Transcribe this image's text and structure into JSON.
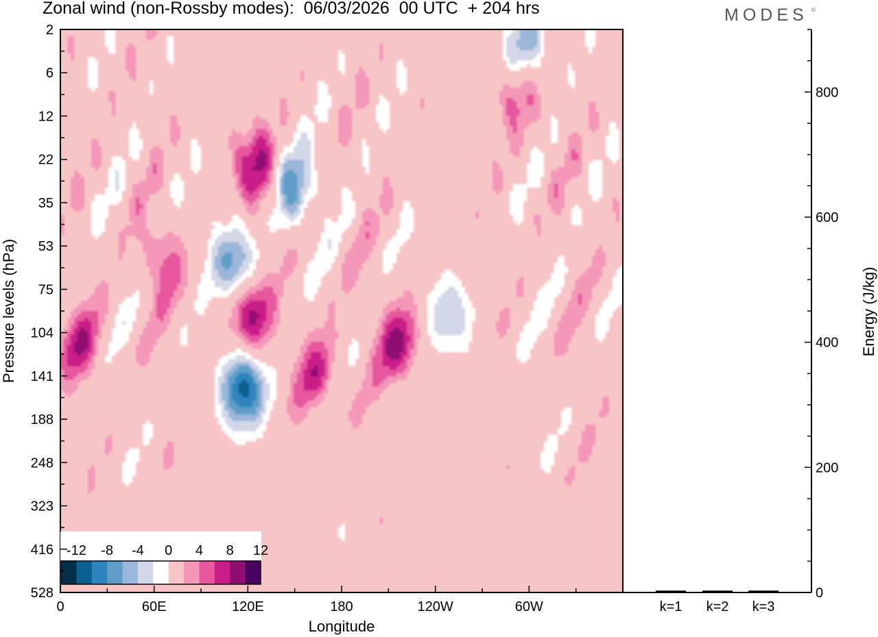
{
  "chart_data": [
    {
      "type": "heatmap",
      "title": "Zonal wind (non-Rossby modes):  06/03/2026  00 UTC  + 204 hrs",
      "xlabel": "Longitude",
      "ylabel": "Pressure levels (hPa)",
      "x_ticks": [
        "0",
        "60E",
        "120E",
        "180",
        "120W",
        "60W"
      ],
      "x_tick_values": [
        0,
        60,
        120,
        180,
        240,
        300
      ],
      "xlim": [
        0,
        360
      ],
      "y_ticks": [
        "2",
        "6",
        "12",
        "22",
        "35",
        "53",
        "75",
        "104",
        "141",
        "188",
        "248",
        "323",
        "416",
        "528"
      ],
      "colorbar_labels": [
        "-12",
        "-8",
        "-4",
        "0",
        "4",
        "8",
        "12"
      ],
      "colorbar_levels": [
        -14,
        -12,
        -10,
        -8,
        -6,
        -4,
        -2,
        2,
        4,
        6,
        8,
        10,
        12,
        14
      ],
      "colorbar_colors": [
        "#06304a",
        "#0a5e90",
        "#2e85bd",
        "#5f9dc8",
        "#9ab6d8",
        "#d3d7e8",
        "#ffffff",
        "#f8c5c7",
        "#f497b8",
        "#e6579d",
        "#c91d88",
        "#8e0e72",
        "#4a0060"
      ],
      "features": [
        {
          "lon": 117,
          "level": 8.3,
          "value": -13
        },
        {
          "lon": 148,
          "level": 3.6,
          "value": -9
        },
        {
          "lon": 110,
          "level": 5.4,
          "value": -9
        },
        {
          "lon": 122,
          "level": 6.6,
          "value": 9
        },
        {
          "lon": 126,
          "level": 3.2,
          "value": 9
        },
        {
          "lon": 217,
          "level": 7.3,
          "value": 8
        },
        {
          "lon": 164,
          "level": 8.0,
          "value": 6
        },
        {
          "lon": 249,
          "level": 6.6,
          "value": -6
        },
        {
          "lon": 298,
          "level": 0.4,
          "value": -7
        },
        {
          "lon": 293,
          "level": 1.5,
          "value": 5
        },
        {
          "lon": 64,
          "level": 5.3,
          "value": 5
        },
        {
          "lon": 12,
          "level": 7.3,
          "value": 6
        }
      ]
    },
    {
      "type": "bar",
      "categories": [
        "k=1",
        "k=2",
        "k=3"
      ],
      "values": [
        3,
        3,
        3
      ],
      "ylabel": "Energy (J/kg)",
      "y_ticks": [
        "0",
        "200",
        "400",
        "600",
        "800"
      ],
      "y_tick_values": [
        0,
        200,
        400,
        600,
        800
      ],
      "ylim": [
        0,
        900
      ]
    }
  ],
  "brand": {
    "name": "MODES",
    "mark": "©"
  },
  "colors": {
    "axis": "#000000",
    "background": "#ffffff"
  }
}
